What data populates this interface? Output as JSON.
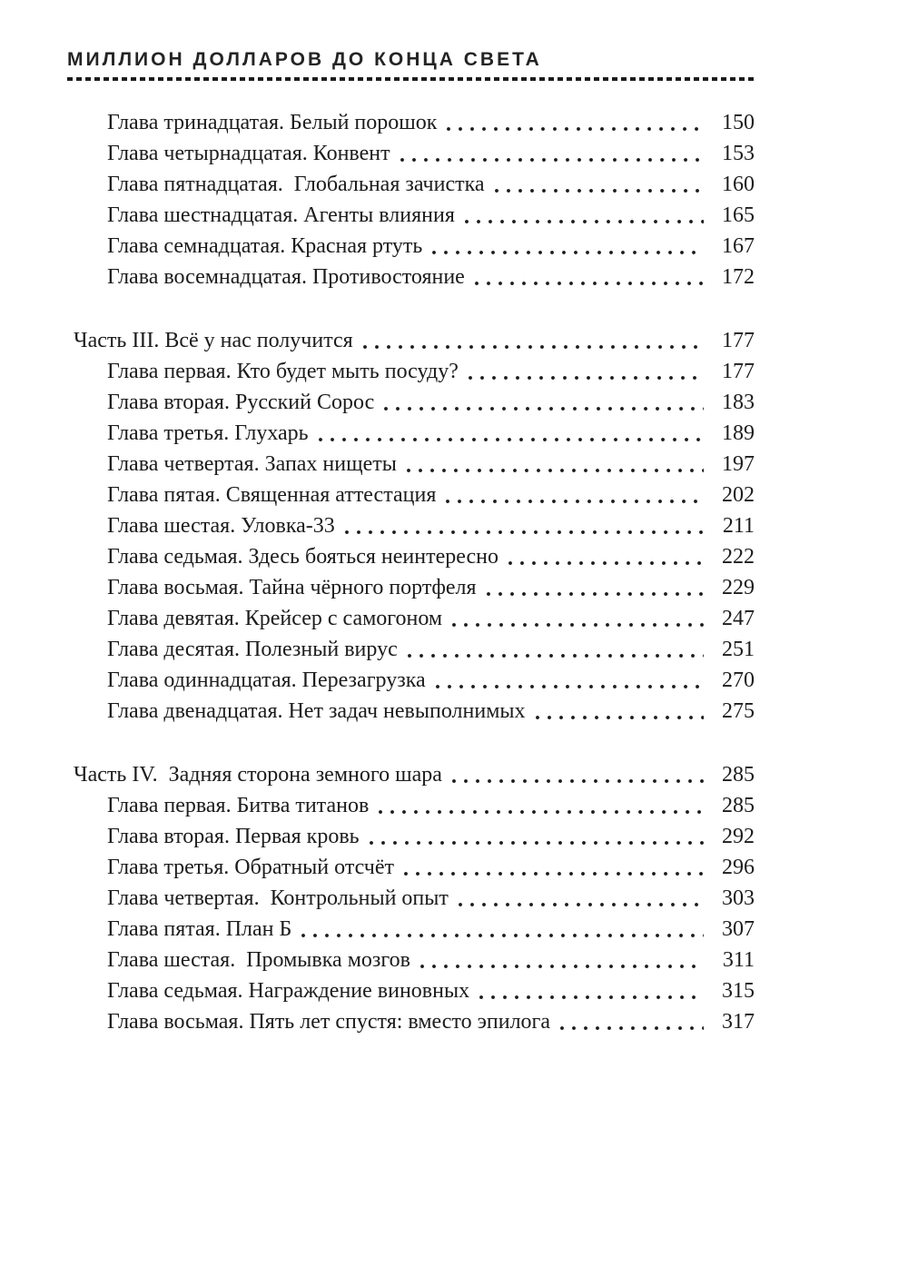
{
  "header": {
    "title": "МИЛЛИОН ДОЛЛАРОВ ДО КОНЦА СВЕТА"
  },
  "colors": {
    "text": "#1c1c1c",
    "background": "#ffffff"
  },
  "toc": {
    "groups": [
      {
        "part": null,
        "chapters": [
          {
            "title": "Глава тринадцатая. Белый порошок",
            "page": "150"
          },
          {
            "title": "Глава четырнадцатая. Конвент",
            "page": "153"
          },
          {
            "title": "Глава пятнадцатая.  Глобальная зачистка",
            "page": "160"
          },
          {
            "title": "Глава шестнадцатая. Агенты влияния",
            "page": "165"
          },
          {
            "title": "Глава семнадцатая. Красная ртуть",
            "page": "167"
          },
          {
            "title": "Глава восемнадцатая. Противостояние",
            "page": "172"
          }
        ]
      },
      {
        "part": {
          "title": "Часть III. Всё у нас получится",
          "page": "177"
        },
        "chapters": [
          {
            "title": "Глава первая. Кто будет мыть посуду?",
            "page": "177"
          },
          {
            "title": "Глава вторая. Русский Сорос",
            "page": "183"
          },
          {
            "title": "Глава третья. Глухарь",
            "page": "189"
          },
          {
            "title": "Глава четвертая. Запах нищеты",
            "page": "197"
          },
          {
            "title": "Глава пятая. Священная аттестация",
            "page": "202"
          },
          {
            "title": "Глава шестая. Уловка-33",
            "page": "211"
          },
          {
            "title": "Глава седьмая. Здесь бояться неинтересно",
            "page": "222"
          },
          {
            "title": "Глава восьмая. Тайна чёрного портфеля",
            "page": "229"
          },
          {
            "title": "Глава девятая. Крейсер с самогоном",
            "page": "247"
          },
          {
            "title": "Глава десятая. Полезный вирус",
            "page": "251"
          },
          {
            "title": "Глава одиннадцатая. Перезагрузка",
            "page": "270"
          },
          {
            "title": "Глава двенадцатая. Нет задач невыполнимых",
            "page": "275"
          }
        ]
      },
      {
        "part": {
          "title": "Часть IV.  Задняя сторона земного шара",
          "page": "285"
        },
        "chapters": [
          {
            "title": "Глава первая. Битва титанов",
            "page": "285"
          },
          {
            "title": "Глава вторая. Первая кровь",
            "page": "292"
          },
          {
            "title": "Глава третья. Обратный отсчёт",
            "page": "296"
          },
          {
            "title": "Глава четвертая.  Контрольный опыт",
            "page": "303"
          },
          {
            "title": "Глава пятая. План Б",
            "page": "307"
          },
          {
            "title": "Глава шестая.  Промывка мозгов",
            "page": "311"
          },
          {
            "title": "Глава седьмая. Награждение виновных",
            "page": "315"
          },
          {
            "title": "Глава восьмая. Пять лет спустя: вместо эпилога",
            "page": "317"
          }
        ]
      }
    ]
  }
}
